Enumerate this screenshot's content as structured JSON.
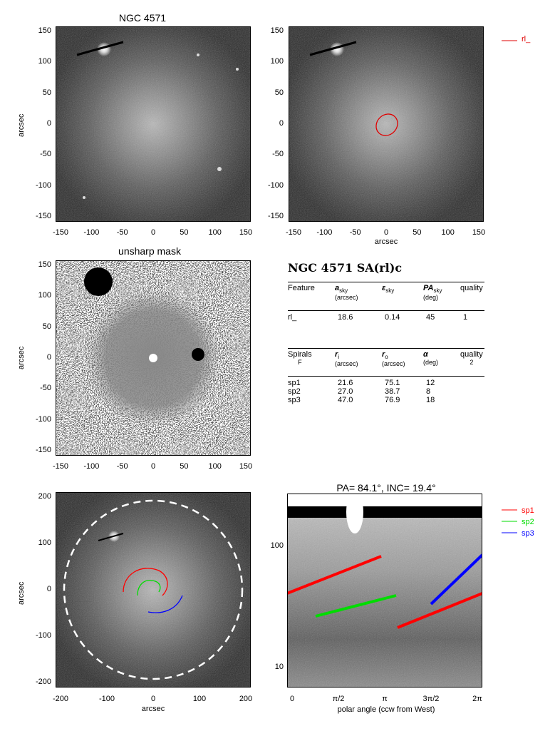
{
  "panels": {
    "image": {
      "title": "NGC 4571",
      "ylabel": "arcsec",
      "xticks": [
        "-150",
        "-100",
        "-50",
        "0",
        "50",
        "100",
        "150"
      ],
      "yticks": [
        "150",
        "100",
        "50",
        "0",
        "-50",
        "-100",
        "-150"
      ]
    },
    "ellipse": {
      "xlabel": "arcsec",
      "xticks": [
        "-150",
        "-100",
        "-50",
        "0",
        "50",
        "100",
        "150"
      ],
      "yticks": [
        "150",
        "100",
        "50",
        "0",
        "-50",
        "-100",
        "-150"
      ],
      "legend": "rl_",
      "ellipse_color": "#e00000"
    },
    "unsharp": {
      "title": "unsharp mask",
      "ylabel": "arcsec",
      "xticks": [
        "-150",
        "-100",
        "-50",
        "0",
        "50",
        "100",
        "150"
      ],
      "yticks": [
        "150",
        "100",
        "50",
        "0",
        "-50",
        "-100",
        "-150"
      ]
    },
    "spirals": {
      "xlabel": "arcsec",
      "ylabel": "arcsec",
      "xticks": [
        "-200",
        "-100",
        "0",
        "100",
        "200"
      ],
      "yticks": [
        "200",
        "100",
        "0",
        "-100",
        "-200"
      ]
    },
    "polar": {
      "title": "PA=  84.1°, INC=  19.4°",
      "xlabel": "polar angle (ccw from West)",
      "xticks": [
        "0",
        "π/2",
        "π",
        "3π/2",
        "2π"
      ],
      "yticks": [
        "100",
        "10"
      ],
      "legend": [
        {
          "name": "sp1",
          "color": "#ff0000"
        },
        {
          "name": "sp2",
          "color": "#00dd00"
        },
        {
          "name": "sp3",
          "color": "#0000ff"
        }
      ]
    }
  },
  "table": {
    "heading": "NGC 4571  SA(rl)c",
    "features": {
      "headers": [
        {
          "main": "Feature",
          "sub": ""
        },
        {
          "main": "a",
          "suffix": "sky",
          "sub": "(arcsec)"
        },
        {
          "main": "ε",
          "suffix": "sky",
          "sub": ""
        },
        {
          "main": "PA",
          "suffix": "sky",
          "sub": "(deg)"
        },
        {
          "main": "quality",
          "sub": ""
        }
      ],
      "rows": [
        [
          "rl_",
          "18.6",
          "0.14",
          "45",
          "1"
        ]
      ]
    },
    "spirals": {
      "headers": [
        {
          "main": "Spirals",
          "sub": "F"
        },
        {
          "main": "r",
          "suffix": "i",
          "sub": "(arcsec)"
        },
        {
          "main": "r",
          "suffix": "o",
          "sub": "(arcsec)"
        },
        {
          "main": "α",
          "suffix": "",
          "sub": "(deg)"
        },
        {
          "main": "quality",
          "sub": "2"
        }
      ],
      "rows": [
        [
          "sp1",
          "21.6",
          "75.1",
          "12"
        ],
        [
          "sp2",
          "27.0",
          "38.7",
          "8"
        ],
        [
          "sp3",
          "47.0",
          "76.9",
          "18"
        ]
      ]
    }
  }
}
